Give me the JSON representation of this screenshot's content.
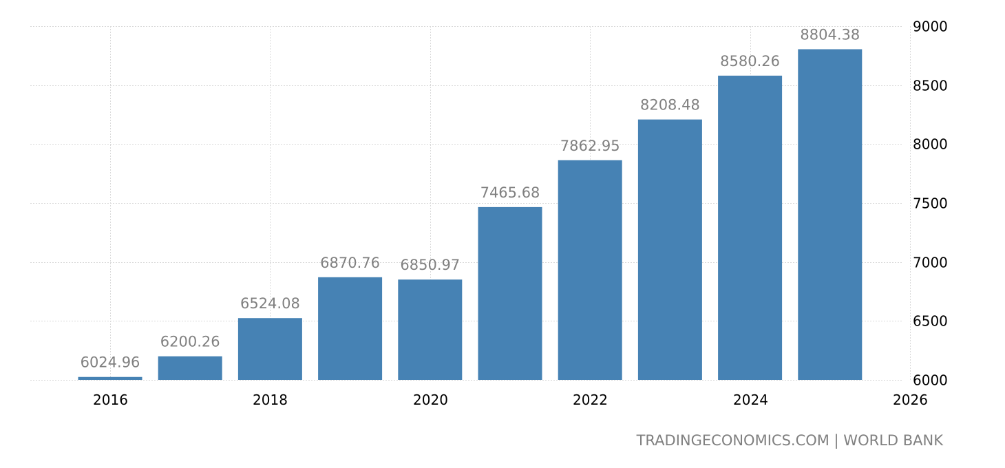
{
  "chart_data": {
    "type": "bar",
    "x": [
      2016,
      2017,
      2018,
      2019,
      2020,
      2021,
      2022,
      2023,
      2024,
      2025
    ],
    "values": [
      6024.96,
      6200.26,
      6524.08,
      6870.76,
      6850.97,
      7465.68,
      7862.95,
      8208.48,
      8580.26,
      8804.38
    ],
    "data_labels": [
      "6024.96",
      "6200.26",
      "6524.08",
      "6870.76",
      "6850.97",
      "7465.68",
      "7862.95",
      "8208.48",
      "8580.26",
      "8804.38"
    ],
    "xticks": [
      "2016",
      "2018",
      "2020",
      "2022",
      "2024",
      "2026"
    ],
    "yticks": [
      "6000",
      "6500",
      "7000",
      "7500",
      "8000",
      "8500",
      "9000"
    ],
    "ylim": [
      6000,
      9000
    ],
    "xlim": [
      2016,
      2026
    ],
    "y_axis_position": "right",
    "grid": true,
    "bar_color": "#4682b4"
  },
  "footer": {
    "source": "TRADINGECONOMICS.COM | WORLD BANK"
  }
}
